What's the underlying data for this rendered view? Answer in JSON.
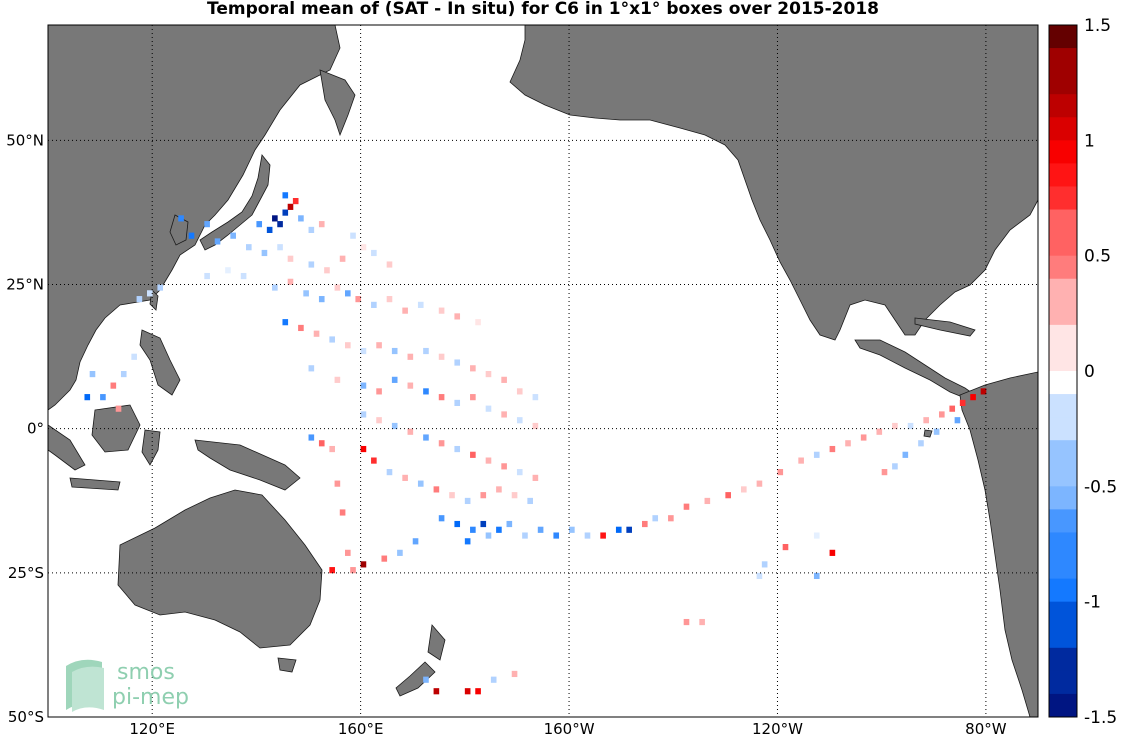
{
  "chart_data": {
    "type": "heatmap",
    "title": "Temporal mean of (SAT - In situ) for C6 in 1°x1° boxes over 2015-2018",
    "lon_range": [
      100,
      290
    ],
    "lat_range": [
      -50,
      70
    ],
    "lat_ticks": [
      {
        "value": 50,
        "label": "50°N"
      },
      {
        "value": 25,
        "label": "25°N"
      },
      {
        "value": 0,
        "label": "0°"
      },
      {
        "value": -25,
        "label": "25°S"
      },
      {
        "value": -50,
        "label": "50°S"
      }
    ],
    "lon_ticks": [
      {
        "value": 120,
        "label": "120°E"
      },
      {
        "value": 160,
        "label": "160°E"
      },
      {
        "value": 200,
        "label": "160°W"
      },
      {
        "value": 240,
        "label": "120°W"
      },
      {
        "value": 280,
        "label": "80°W"
      }
    ],
    "grid": true,
    "colorbar": {
      "min": -1.5,
      "max": 1.5,
      "levels": 30,
      "tick_labels": [
        "1.5",
        "1",
        "0.5",
        "0",
        "-0.5",
        "-1",
        "-1.5"
      ],
      "tick_values": [
        1.5,
        1,
        0.5,
        0,
        -0.5,
        -1,
        -1.5
      ]
    },
    "cells": [
      {
        "lon": 143,
        "lat": 36,
        "v": -1.4
      },
      {
        "lon": 144,
        "lat": 35,
        "v": -1.3
      },
      {
        "lon": 145,
        "lat": 37,
        "v": -1.2
      },
      {
        "lon": 146,
        "lat": 38,
        "v": 1.2
      },
      {
        "lon": 147,
        "lat": 39,
        "v": 0.8
      },
      {
        "lon": 145,
        "lat": 40,
        "v": -0.9
      },
      {
        "lon": 142,
        "lat": 34,
        "v": -1.1
      },
      {
        "lon": 140,
        "lat": 35,
        "v": -0.7
      },
      {
        "lon": 148,
        "lat": 36,
        "v": -0.5
      },
      {
        "lon": 150,
        "lat": 34,
        "v": -0.3
      },
      {
        "lon": 152,
        "lat": 35,
        "v": 0.3
      },
      {
        "lon": 130,
        "lat": 35,
        "v": -0.6
      },
      {
        "lon": 125,
        "lat": 36,
        "v": -0.8
      },
      {
        "lon": 127,
        "lat": 33,
        "v": -0.9
      },
      {
        "lon": 132,
        "lat": 32,
        "v": -0.6
      },
      {
        "lon": 135,
        "lat": 33,
        "v": -0.5
      },
      {
        "lon": 138,
        "lat": 31,
        "v": -0.3
      },
      {
        "lon": 141,
        "lat": 30,
        "v": -0.4
      },
      {
        "lon": 144,
        "lat": 31,
        "v": -0.2
      },
      {
        "lon": 146,
        "lat": 29,
        "v": 0.2
      },
      {
        "lon": 150,
        "lat": 28,
        "v": -0.3
      },
      {
        "lon": 153,
        "lat": 27,
        "v": 0.2
      },
      {
        "lon": 156,
        "lat": 29,
        "v": 0.3
      },
      {
        "lon": 158,
        "lat": 33,
        "v": -0.2
      },
      {
        "lon": 160,
        "lat": 31,
        "v": 0.1
      },
      {
        "lon": 162,
        "lat": 30,
        "v": -0.2
      },
      {
        "lon": 165,
        "lat": 28,
        "v": 0.2
      },
      {
        "lon": 130,
        "lat": 26,
        "v": -0.2
      },
      {
        "lon": 134,
        "lat": 27,
        "v": -0.1
      },
      {
        "lon": 137,
        "lat": 26,
        "v": -0.2
      },
      {
        "lon": 143,
        "lat": 24,
        "v": -0.3
      },
      {
        "lon": 146,
        "lat": 25,
        "v": 0.3
      },
      {
        "lon": 149,
        "lat": 23,
        "v": -0.4
      },
      {
        "lon": 152,
        "lat": 22,
        "v": -0.5
      },
      {
        "lon": 155,
        "lat": 24,
        "v": 0.2
      },
      {
        "lon": 157,
        "lat": 23,
        "v": -0.6
      },
      {
        "lon": 159,
        "lat": 22,
        "v": 0.4
      },
      {
        "lon": 162,
        "lat": 21,
        "v": -0.3
      },
      {
        "lon": 165,
        "lat": 22,
        "v": 0.2
      },
      {
        "lon": 168,
        "lat": 20,
        "v": 0.3
      },
      {
        "lon": 171,
        "lat": 21,
        "v": -0.2
      },
      {
        "lon": 175,
        "lat": 20,
        "v": 0.2
      },
      {
        "lon": 178,
        "lat": 19,
        "v": 0.3
      },
      {
        "lon": 182,
        "lat": 18,
        "v": 0.1
      },
      {
        "lon": 145,
        "lat": 18,
        "v": -0.9
      },
      {
        "lon": 148,
        "lat": 17,
        "v": 0.5
      },
      {
        "lon": 151,
        "lat": 16,
        "v": 0.3
      },
      {
        "lon": 154,
        "lat": 15,
        "v": -0.3
      },
      {
        "lon": 157,
        "lat": 14,
        "v": 0.2
      },
      {
        "lon": 160,
        "lat": 13,
        "v": -0.2
      },
      {
        "lon": 163,
        "lat": 14,
        "v": 0.3
      },
      {
        "lon": 166,
        "lat": 13,
        "v": -0.4
      },
      {
        "lon": 169,
        "lat": 12,
        "v": 0.3
      },
      {
        "lon": 172,
        "lat": 13,
        "v": -0.3
      },
      {
        "lon": 175,
        "lat": 12,
        "v": 0.2
      },
      {
        "lon": 178,
        "lat": 11,
        "v": -0.3
      },
      {
        "lon": 181,
        "lat": 10,
        "v": 0.3
      },
      {
        "lon": 184,
        "lat": 9,
        "v": 0.2
      },
      {
        "lon": 187,
        "lat": 8,
        "v": 0.3
      },
      {
        "lon": 190,
        "lat": 6,
        "v": 0.2
      },
      {
        "lon": 193,
        "lat": 5,
        "v": -0.2
      },
      {
        "lon": 150,
        "lat": 10,
        "v": -0.3
      },
      {
        "lon": 155,
        "lat": 8,
        "v": 0.2
      },
      {
        "lon": 160,
        "lat": 7,
        "v": -0.5
      },
      {
        "lon": 163,
        "lat": 6,
        "v": 0.4
      },
      {
        "lon": 166,
        "lat": 8,
        "v": -0.6
      },
      {
        "lon": 169,
        "lat": 7,
        "v": 0.3
      },
      {
        "lon": 172,
        "lat": 6,
        "v": -0.8
      },
      {
        "lon": 175,
        "lat": 5,
        "v": 0.5
      },
      {
        "lon": 178,
        "lat": 4,
        "v": -0.3
      },
      {
        "lon": 181,
        "lat": 5,
        "v": 0.4
      },
      {
        "lon": 184,
        "lat": 3,
        "v": -0.2
      },
      {
        "lon": 187,
        "lat": 2,
        "v": 0.3
      },
      {
        "lon": 190,
        "lat": 1,
        "v": -0.2
      },
      {
        "lon": 193,
        "lat": 0,
        "v": 0.2
      },
      {
        "lon": 160,
        "lat": 2,
        "v": -0.3
      },
      {
        "lon": 163,
        "lat": 1,
        "v": 0.2
      },
      {
        "lon": 166,
        "lat": 0,
        "v": -0.4
      },
      {
        "lon": 169,
        "lat": -1,
        "v": 0.3
      },
      {
        "lon": 172,
        "lat": -2,
        "v": -0.6
      },
      {
        "lon": 175,
        "lat": -3,
        "v": 0.4
      },
      {
        "lon": 178,
        "lat": -4,
        "v": -0.3
      },
      {
        "lon": 181,
        "lat": -5,
        "v": 0.6
      },
      {
        "lon": 184,
        "lat": -6,
        "v": 0.3
      },
      {
        "lon": 187,
        "lat": -7,
        "v": 0.4
      },
      {
        "lon": 190,
        "lat": -8,
        "v": -0.2
      },
      {
        "lon": 193,
        "lat": -9,
        "v": 0.3
      },
      {
        "lon": 160,
        "lat": -4,
        "v": 1.0
      },
      {
        "lon": 162,
        "lat": -6,
        "v": 0.8
      },
      {
        "lon": 165,
        "lat": -8,
        "v": -0.3
      },
      {
        "lon": 168,
        "lat": -9,
        "v": 0.3
      },
      {
        "lon": 171,
        "lat": -10,
        "v": -0.4
      },
      {
        "lon": 174,
        "lat": -11,
        "v": 0.5
      },
      {
        "lon": 177,
        "lat": -12,
        "v": 0.2
      },
      {
        "lon": 180,
        "lat": -13,
        "v": -0.3
      },
      {
        "lon": 183,
        "lat": -12,
        "v": 0.4
      },
      {
        "lon": 186,
        "lat": -11,
        "v": 0.3
      },
      {
        "lon": 189,
        "lat": -12,
        "v": 0.2
      },
      {
        "lon": 192,
        "lat": -13,
        "v": -0.3
      },
      {
        "lon": 175,
        "lat": -16,
        "v": -0.7
      },
      {
        "lon": 178,
        "lat": -17,
        "v": -1.0
      },
      {
        "lon": 181,
        "lat": -18,
        "v": -0.8
      },
      {
        "lon": 183,
        "lat": -17,
        "v": -1.2
      },
      {
        "lon": 186,
        "lat": -18,
        "v": -0.9
      },
      {
        "lon": 188,
        "lat": -17,
        "v": -0.5
      },
      {
        "lon": 191,
        "lat": -19,
        "v": -0.3
      },
      {
        "lon": 194,
        "lat": -18,
        "v": -0.6
      },
      {
        "lon": 197,
        "lat": -19,
        "v": -0.8
      },
      {
        "lon": 200,
        "lat": -18,
        "v": -0.4
      },
      {
        "lon": 203,
        "lat": -19,
        "v": -0.3
      },
      {
        "lon": 206,
        "lat": -19,
        "v": 0.9
      },
      {
        "lon": 209,
        "lat": -18,
        "v": -1.0
      },
      {
        "lon": 211,
        "lat": -18,
        "v": -1.2
      },
      {
        "lon": 214,
        "lat": -17,
        "v": 0.5
      },
      {
        "lon": 216,
        "lat": -16,
        "v": -0.3
      },
      {
        "lon": 219,
        "lat": -16,
        "v": 0.4
      },
      {
        "lon": 170,
        "lat": -20,
        "v": -0.6
      },
      {
        "lon": 167,
        "lat": -22,
        "v": -0.4
      },
      {
        "lon": 164,
        "lat": -23,
        "v": 0.5
      },
      {
        "lon": 160,
        "lat": -24,
        "v": 1.3
      },
      {
        "lon": 158,
        "lat": -25,
        "v": 0.4
      },
      {
        "lon": 180,
        "lat": -20,
        "v": -0.9
      },
      {
        "lon": 184,
        "lat": -19,
        "v": -0.4
      },
      {
        "lon": 222,
        "lat": -14,
        "v": 0.5
      },
      {
        "lon": 226,
        "lat": -13,
        "v": 0.3
      },
      {
        "lon": 230,
        "lat": -12,
        "v": 0.6
      },
      {
        "lon": 233,
        "lat": -11,
        "v": 0.2
      },
      {
        "lon": 236,
        "lat": -10,
        "v": 0.3
      },
      {
        "lon": 240,
        "lat": -8,
        "v": 0.4
      },
      {
        "lon": 244,
        "lat": -6,
        "v": 0.3
      },
      {
        "lon": 247,
        "lat": -5,
        "v": -0.3
      },
      {
        "lon": 250,
        "lat": -4,
        "v": 0.5
      },
      {
        "lon": 253,
        "lat": -3,
        "v": 0.3
      },
      {
        "lon": 256,
        "lat": -2,
        "v": 0.4
      },
      {
        "lon": 259,
        "lat": -1,
        "v": 0.3
      },
      {
        "lon": 262,
        "lat": 0,
        "v": 0.2
      },
      {
        "lon": 265,
        "lat": 0,
        "v": -0.2
      },
      {
        "lon": 268,
        "lat": 1,
        "v": 0.3
      },
      {
        "lon": 271,
        "lat": 2,
        "v": 0.4
      },
      {
        "lon": 273,
        "lat": 3,
        "v": 0.6
      },
      {
        "lon": 275,
        "lat": 4,
        "v": 0.8
      },
      {
        "lon": 277,
        "lat": 5,
        "v": 1.0
      },
      {
        "lon": 279,
        "lat": 6,
        "v": 1.2
      },
      {
        "lon": 274,
        "lat": 1,
        "v": -0.6
      },
      {
        "lon": 270,
        "lat": -1,
        "v": -0.4
      },
      {
        "lon": 267,
        "lat": -3,
        "v": -0.3
      },
      {
        "lon": 264,
        "lat": -5,
        "v": -0.5
      },
      {
        "lon": 262,
        "lat": -7,
        "v": -0.3
      },
      {
        "lon": 260,
        "lat": -8,
        "v": 0.4
      },
      {
        "lon": 241,
        "lat": -21,
        "v": 0.6
      },
      {
        "lon": 250,
        "lat": -22,
        "v": 1.0
      },
      {
        "lon": 247,
        "lat": -19,
        "v": -0.1
      },
      {
        "lon": 237,
        "lat": -24,
        "v": -0.3
      },
      {
        "lon": 236,
        "lat": -26,
        "v": -0.2
      },
      {
        "lon": 247,
        "lat": -26,
        "v": -0.5
      },
      {
        "lon": 222,
        "lat": -34,
        "v": 0.4
      },
      {
        "lon": 225,
        "lat": -34,
        "v": 0.3
      },
      {
        "lon": 172,
        "lat": -44,
        "v": -0.5
      },
      {
        "lon": 174,
        "lat": -46,
        "v": 1.2
      },
      {
        "lon": 180,
        "lat": -46,
        "v": 1.1
      },
      {
        "lon": 182,
        "lat": -46,
        "v": 1.0
      },
      {
        "lon": 185,
        "lat": -44,
        "v": -0.3
      },
      {
        "lon": 189,
        "lat": -43,
        "v": 0.3
      },
      {
        "lon": 157,
        "lat": -22,
        "v": 0.4
      },
      {
        "lon": 154,
        "lat": -25,
        "v": 0.9
      },
      {
        "lon": 156,
        "lat": -15,
        "v": 0.5
      },
      {
        "lon": 155,
        "lat": -10,
        "v": 0.4
      },
      {
        "lon": 150,
        "lat": -2,
        "v": -0.7
      },
      {
        "lon": 152,
        "lat": -3,
        "v": 0.6
      },
      {
        "lon": 154,
        "lat": -4,
        "v": 0.3
      },
      {
        "lon": 110,
        "lat": 5,
        "v": -0.7
      },
      {
        "lon": 112,
        "lat": 7,
        "v": 0.5
      },
      {
        "lon": 113,
        "lat": 3,
        "v": 0.4
      },
      {
        "lon": 114,
        "lat": 9,
        "v": -0.3
      },
      {
        "lon": 116,
        "lat": 12,
        "v": -0.2
      },
      {
        "lon": 108,
        "lat": 9,
        "v": -0.4
      },
      {
        "lon": 107,
        "lat": 5,
        "v": -1.0
      },
      {
        "lon": 117,
        "lat": 22,
        "v": -0.3
      },
      {
        "lon": 119,
        "lat": 23,
        "v": -0.2
      },
      {
        "lon": 121,
        "lat": 24,
        "v": -0.3
      }
    ]
  }
}
